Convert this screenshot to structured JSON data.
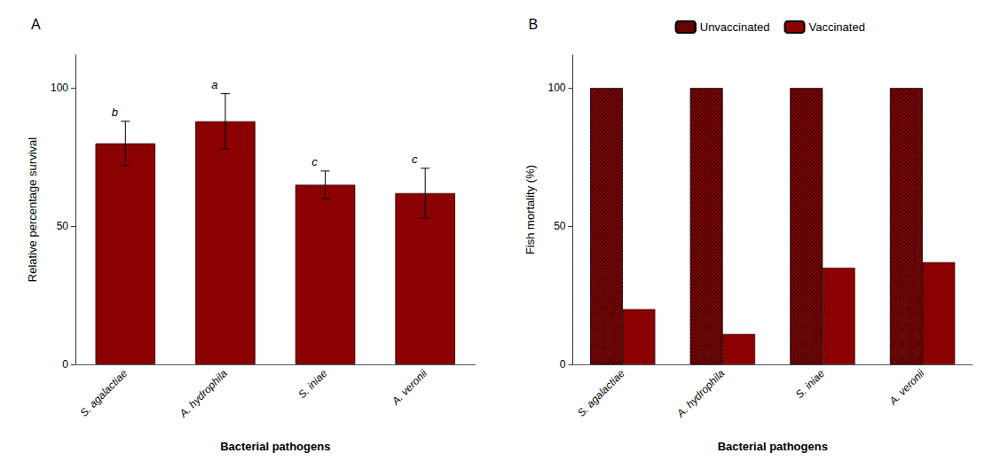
{
  "chart_data": [
    {
      "type": "bar",
      "title": "A",
      "categories": [
        "S. agalactiae",
        "A. hydrophila",
        "S. iniae",
        "A. veronii"
      ],
      "values": [
        80.0,
        88.0,
        65.0,
        62.0
      ],
      "errors": [
        8.0,
        10.0,
        5.0,
        9.0
      ],
      "annotations": [
        "b",
        "a",
        "c",
        "c"
      ],
      "color": "#8B0000",
      "xlabel": "Bacterial pathogens",
      "ylabel": "Relative percentage survival",
      "ylim": [
        0,
        112
      ],
      "yticks": [
        0,
        50,
        100
      ],
      "grid": false
    },
    {
      "type": "bar",
      "title": "B",
      "categories": [
        "S. agalactiae",
        "A. hydrophila",
        "S. iniae",
        "A. veronii"
      ],
      "series": [
        {
          "name": "Unvaccinated",
          "color": "#8B0000",
          "values": [
            100,
            100,
            100,
            100
          ]
        },
        {
          "name": "Vaccinated",
          "color": "#8B0000",
          "values": [
            20,
            11,
            35,
            37
          ]
        }
      ],
      "xlabel": "Bacterial pathogens",
      "ylabel": "Fish mortality (%)",
      "ylim": [
        0,
        112
      ],
      "yticks": [
        0,
        50,
        100
      ],
      "grid": false,
      "legend": "top"
    }
  ]
}
